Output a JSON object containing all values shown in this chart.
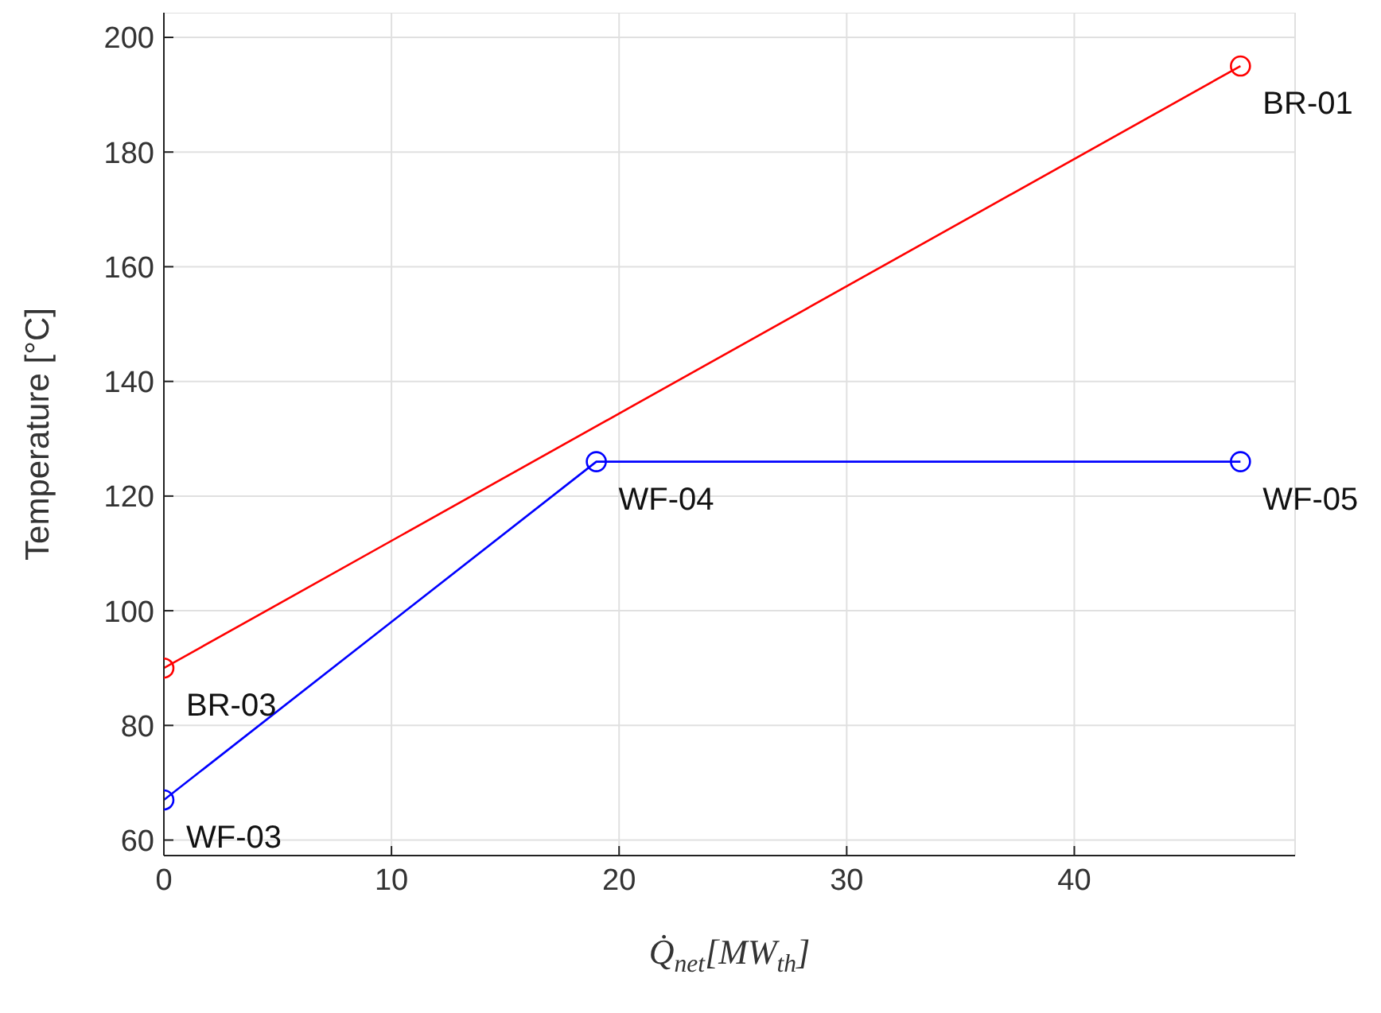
{
  "chart_data": {
    "type": "line",
    "xlabel": "Q̇$_{net}$[MW$_{th}$]",
    "ylabel": "Temperature [°C]",
    "series": [
      {
        "color": "#ff0000",
        "x": [
          0,
          47.3
        ],
        "values": [
          90,
          195
        ]
      },
      {
        "color": "#0000ff",
        "x": [
          0,
          19,
          47.3
        ],
        "values": [
          67,
          126,
          126
        ]
      }
    ],
    "xlim": [
      0,
      49.7
    ],
    "xticks": [
      0,
      10,
      20,
      30,
      40
    ],
    "ylim": [
      57.3,
      204.3
    ],
    "yticks": [
      60,
      80,
      100,
      120,
      140,
      160,
      180,
      200
    ],
    "grid": true,
    "marker": "circle",
    "line_style": "solid",
    "annotations": [
      {
        "text": "BR-01",
        "x": 47.3,
        "y": 195
      },
      {
        "text": "BR-03",
        "x": 0,
        "y": 90
      },
      {
        "text": "WF-04",
        "x": 19,
        "y": 126
      },
      {
        "text": "WF-05",
        "x": 47.3,
        "y": 126
      },
      {
        "text": "WF-03",
        "x": 0,
        "y": 67
      }
    ]
  }
}
